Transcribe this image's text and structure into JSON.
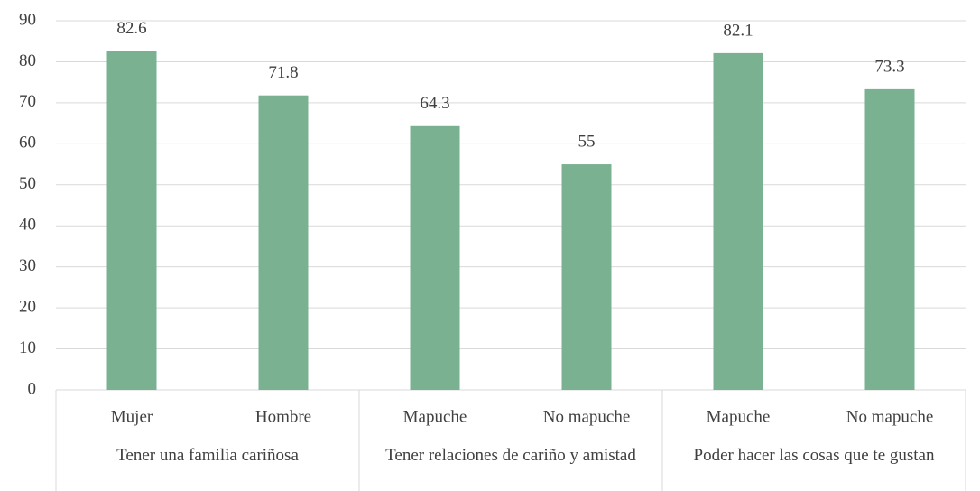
{
  "chart_data": {
    "type": "bar",
    "categories": [
      "Mujer",
      "Hombre",
      "Mapuche",
      "No mapuche",
      "Mapuche",
      "No mapuche"
    ],
    "groups": [
      "Tener una familia cariñosa",
      "Tener relaciones de cariño y amistad",
      "Poder hacer las cosas que te gustan"
    ],
    "values": [
      82.6,
      71.8,
      64.3,
      55,
      82.1,
      73.3
    ],
    "color": "#7ab191",
    "ylim": [
      0,
      90
    ],
    "yticks": [
      0,
      10,
      20,
      30,
      40,
      50,
      60,
      70,
      80,
      90
    ],
    "grid": true
  }
}
